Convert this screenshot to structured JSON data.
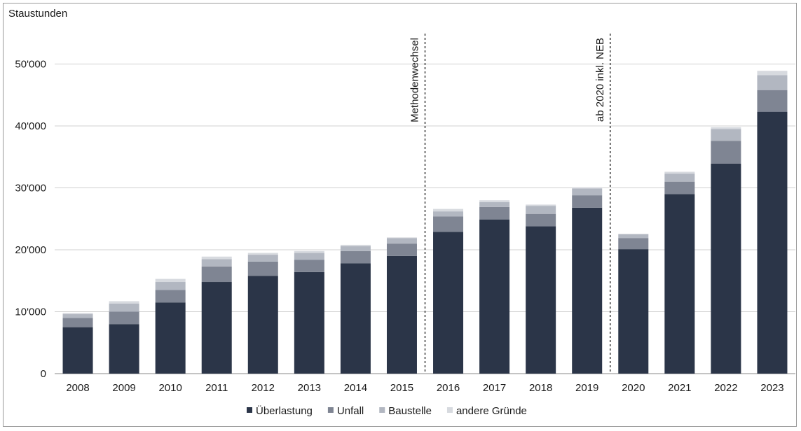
{
  "chart_data": {
    "type": "bar",
    "stacked": true,
    "ylabel": "Staustunden",
    "ylim": [
      0,
      55000
    ],
    "yticks": [
      0,
      10000,
      20000,
      30000,
      40000,
      50000
    ],
    "ytick_labels": [
      "0",
      "10'000",
      "20'000",
      "30'000",
      "40'000",
      "50'000"
    ],
    "grid": true,
    "legend_position": "bottom",
    "categories": [
      "2008",
      "2009",
      "2010",
      "2011",
      "2012",
      "2013",
      "2014",
      "2015",
      "2016",
      "2017",
      "2018",
      "2019",
      "2020",
      "2021",
      "2022",
      "2023"
    ],
    "series": [
      {
        "name": "Überlastung",
        "color": "#2b3548",
        "values": [
          7500,
          8000,
          11500,
          14800,
          15800,
          16400,
          17800,
          19000,
          22900,
          24900,
          23800,
          26800,
          20100,
          29000,
          33900,
          42300
        ]
      },
      {
        "name": "Unfall",
        "color": "#7f8593",
        "values": [
          1500,
          2000,
          2000,
          2500,
          2300,
          2000,
          2000,
          2000,
          2500,
          2000,
          2000,
          2000,
          1800,
          2000,
          3700,
          3500
        ]
      },
      {
        "name": "Baustelle",
        "color": "#b2b7c1",
        "values": [
          600,
          1300,
          1300,
          1200,
          1100,
          1100,
          800,
          900,
          800,
          800,
          1300,
          1100,
          600,
          1300,
          1900,
          2400
        ]
      },
      {
        "name": "andere Gründe",
        "color": "#d7dadf",
        "values": [
          200,
          400,
          500,
          400,
          300,
          300,
          200,
          100,
          400,
          300,
          200,
          200,
          100,
          300,
          300,
          700
        ]
      }
    ],
    "annotations": [
      {
        "text": "Methodenwechsel",
        "after_category": "2015"
      },
      {
        "text": "ab 2020 inkl. NEB",
        "after_category": "2019"
      }
    ]
  }
}
